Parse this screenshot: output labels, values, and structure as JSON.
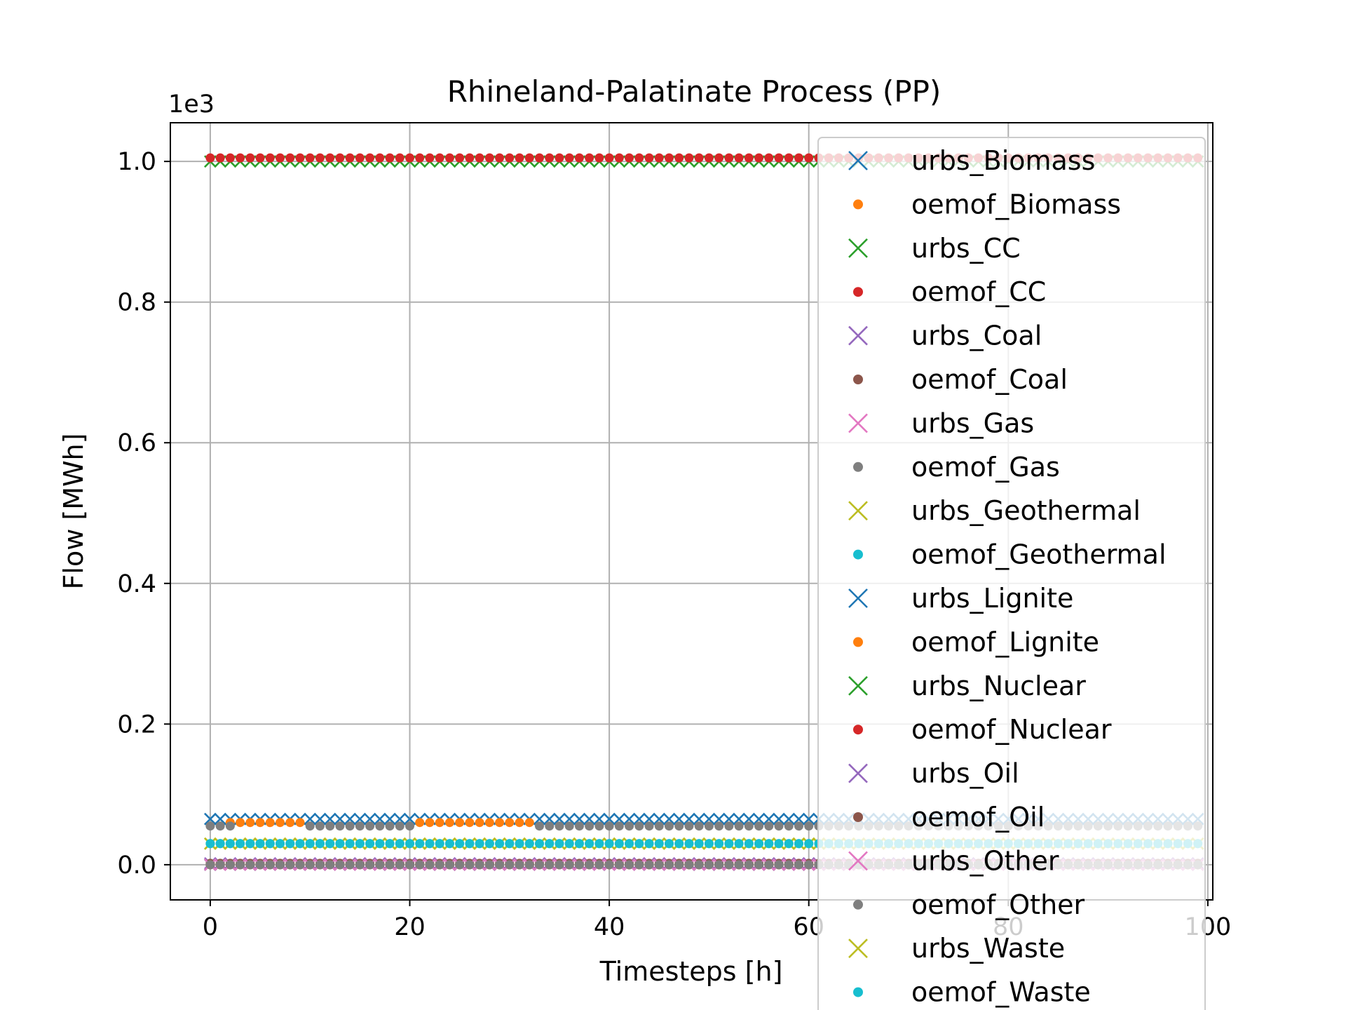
{
  "chart_data": {
    "type": "scatter",
    "title": "Rhineland-Palatinate Process (PP)",
    "xlabel": "Timesteps [h]",
    "ylabel": "Flow [MWh]",
    "y_offset_text": "1e3",
    "xlim": [
      -4,
      100.5
    ],
    "ylim": [
      -0.05,
      1.055
    ],
    "xticks": [
      0,
      20,
      40,
      60,
      80,
      100
    ],
    "xtick_labels": [
      "0",
      "20",
      "40",
      "60",
      "80",
      "100"
    ],
    "yticks": [
      0.0,
      0.2,
      0.4,
      0.6,
      0.8,
      1.0
    ],
    "ytick_labels": [
      "0.0",
      "0.2",
      "0.4",
      "0.6",
      "0.8",
      "1.0"
    ],
    "grid": true,
    "legend_position": "right",
    "x": {
      "start": 0,
      "end": 99,
      "step": 1
    },
    "series": [
      {
        "name": "urbs_Biomass",
        "marker": "x",
        "color": "#1f77b4",
        "value": 0.065
      },
      {
        "name": "oemof_Biomass",
        "marker": "dot",
        "color": "#ff7f0e",
        "value": 0.065,
        "segments": [
          {
            "from": 2,
            "to": 9,
            "value": 0.06
          },
          {
            "from": 21,
            "to": 32,
            "value": 0.06
          }
        ]
      },
      {
        "name": "urbs_CC",
        "marker": "x",
        "color": "#2ca02c",
        "value": 1.0
      },
      {
        "name": "oemof_CC",
        "marker": "dot",
        "color": "#d62728",
        "value": 1.005
      },
      {
        "name": "urbs_Coal",
        "marker": "x",
        "color": "#9467bd",
        "value": 0.002
      },
      {
        "name": "oemof_Coal",
        "marker": "dot",
        "color": "#8c564b",
        "value": 0.002
      },
      {
        "name": "urbs_Gas",
        "marker": "x",
        "color": "#e377c2",
        "value": 0.0
      },
      {
        "name": "oemof_Gas",
        "marker": "dot",
        "color": "#7f7f7f",
        "value": 0.055,
        "segments": [
          {
            "from": 0,
            "to": 2,
            "value": 0.055
          },
          {
            "from": 10,
            "to": 20,
            "value": 0.055
          },
          {
            "from": 33,
            "to": 99,
            "value": 0.055
          }
        ]
      },
      {
        "name": "urbs_Geothermal",
        "marker": "x",
        "color": "#bcbd22",
        "value": 0.03
      },
      {
        "name": "oemof_Geothermal",
        "marker": "dot",
        "color": "#17becf",
        "value": 0.03
      },
      {
        "name": "urbs_Lignite",
        "marker": "x",
        "color": "#1f77b4",
        "value": 0.0
      },
      {
        "name": "oemof_Lignite",
        "marker": "dot",
        "color": "#ff7f0e",
        "value": 0.0
      },
      {
        "name": "urbs_Nuclear",
        "marker": "x",
        "color": "#2ca02c",
        "value": 0.0
      },
      {
        "name": "oemof_Nuclear",
        "marker": "dot",
        "color": "#d62728",
        "value": 0.0
      },
      {
        "name": "urbs_Oil",
        "marker": "x",
        "color": "#9467bd",
        "value": 0.0
      },
      {
        "name": "oemof_Oil",
        "marker": "dot",
        "color": "#8c564b",
        "value": 0.0
      },
      {
        "name": "urbs_Other",
        "marker": "x",
        "color": "#e377c2",
        "value": 0.0
      },
      {
        "name": "oemof_Other",
        "marker": "dot",
        "color": "#7f7f7f",
        "value": 0.0
      },
      {
        "name": "urbs_Waste",
        "marker": "x",
        "color": "#bcbd22",
        "value": 0.03
      },
      {
        "name": "oemof_Waste",
        "marker": "dot",
        "color": "#17becf",
        "value": 0.03
      }
    ]
  }
}
